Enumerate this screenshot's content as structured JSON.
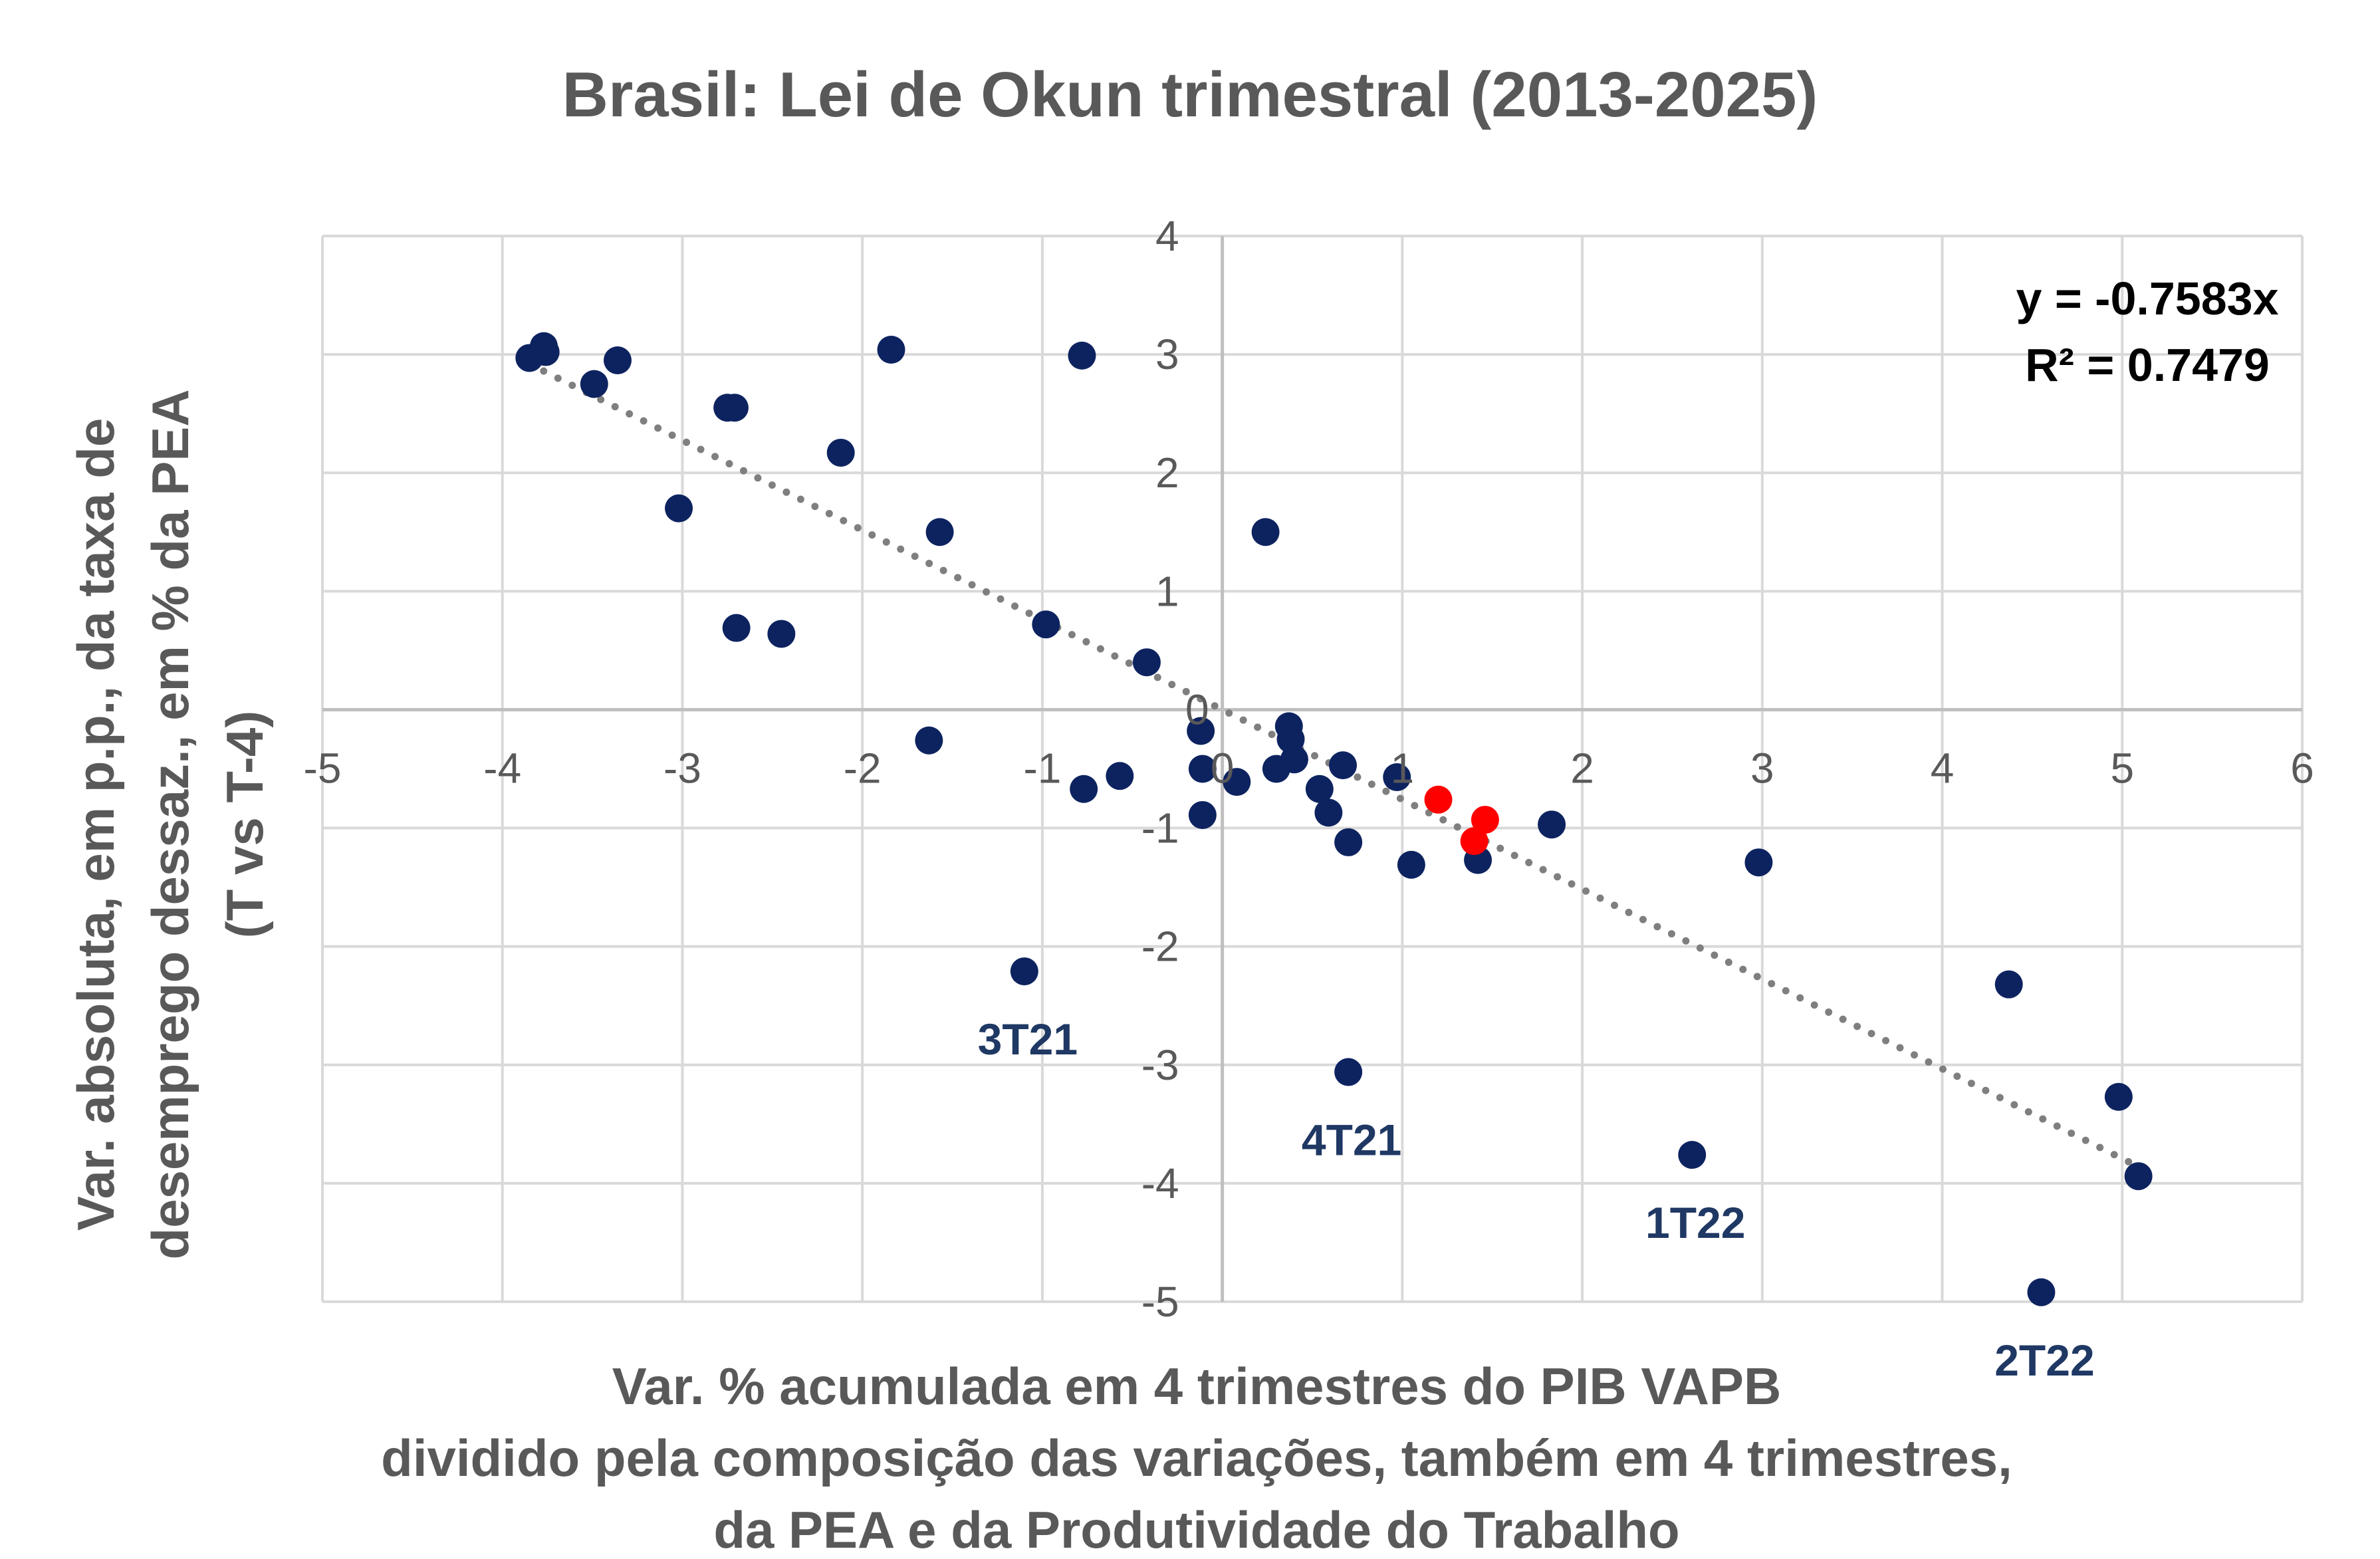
{
  "chart_data": {
    "type": "scatter",
    "title": "Brasil: Lei de Okun trimestral (2013-2025)",
    "xlabel_lines": [
      "Var. % acumulada em 4 trimestres do PIB VAPB",
      "dividido pela composição das variações, também em 4 trimestres,",
      "da PEA e da Produtividade do Trabalho"
    ],
    "ylabel_lines": [
      "Var. absoluta, em p.p., da taxa de",
      "desemprego dessaz., em % da PEA",
      "(T vs T-4)"
    ],
    "xlim": [
      -5,
      6
    ],
    "ylim": [
      -5,
      4
    ],
    "x_ticks": [
      -5,
      -4,
      -3,
      -2,
      -1,
      0,
      1,
      2,
      3,
      4,
      5,
      6
    ],
    "y_ticks": [
      -5,
      -4,
      -3,
      -2,
      -1,
      0,
      1,
      2,
      3,
      4
    ],
    "grid": true,
    "colors": {
      "main": "#0d2360",
      "highlight": "#ff0000",
      "trend": "#7f7f7f",
      "grid": "#d9d9d9",
      "axis": "#bfbfbf"
    },
    "series": [
      {
        "color_key": "main",
        "points": [
          [
            -3.85,
            2.97
          ],
          [
            -3.77,
            3.07
          ],
          [
            -3.76,
            3.02
          ],
          [
            -3.49,
            2.75
          ],
          [
            -3.36,
            2.95
          ],
          [
            -2.75,
            2.55
          ],
          [
            -2.71,
            2.55
          ],
          [
            -3.02,
            1.7
          ],
          [
            -2.12,
            2.17
          ],
          [
            -1.84,
            3.04
          ],
          [
            -1.57,
            1.5
          ],
          [
            -0.78,
            2.99
          ],
          [
            -2.7,
            0.69
          ],
          [
            -2.45,
            0.64
          ],
          [
            -0.98,
            0.72
          ],
          [
            -0.42,
            0.4
          ],
          [
            -1.63,
            -0.26
          ],
          [
            -0.77,
            -0.67
          ],
          [
            -0.57,
            -0.56
          ],
          [
            -0.12,
            -0.18
          ],
          [
            -0.11,
            -0.5
          ],
          [
            -0.11,
            -0.89
          ],
          [
            0.08,
            -0.61
          ],
          [
            0.24,
            1.5
          ],
          [
            0.3,
            -0.5
          ],
          [
            0.37,
            -0.14
          ],
          [
            0.38,
            -0.25
          ],
          [
            0.4,
            -0.42
          ],
          [
            0.54,
            -0.67
          ],
          [
            0.59,
            -0.87
          ],
          [
            0.67,
            -0.47
          ],
          [
            0.7,
            -1.12
          ],
          [
            0.97,
            -0.57
          ],
          [
            1.05,
            -1.31
          ],
          [
            1.42,
            -1.27
          ],
          [
            1.83,
            -0.97
          ],
          [
            2.98,
            -1.29
          ],
          [
            4.37,
            -2.32
          ],
          [
            4.98,
            -3.27
          ],
          [
            5.09,
            -3.94
          ],
          [
            -1.1,
            -2.21
          ],
          [
            0.7,
            -3.06
          ],
          [
            2.61,
            -3.76
          ],
          [
            4.55,
            -4.92
          ]
        ]
      },
      {
        "color_key": "highlight",
        "points": [
          [
            1.2,
            -0.76
          ],
          [
            1.46,
            -0.93
          ],
          [
            1.4,
            -1.11
          ]
        ]
      }
    ],
    "annotations": [
      {
        "text": "3T21",
        "x": -1.1,
        "y": -2.21
      },
      {
        "text": "4T21",
        "x": 0.7,
        "y": -3.06
      },
      {
        "text": "1T22",
        "x": 2.61,
        "y": -3.76
      },
      {
        "text": "2T22",
        "x": 4.55,
        "y": -4.92
      }
    ],
    "trendline": {
      "slope": -0.7583,
      "x_range": [
        -3.85,
        5.09
      ],
      "style": "dotted",
      "equation_lines": [
        "y = -0.7583x",
        "R² = 0.7479"
      ]
    }
  }
}
